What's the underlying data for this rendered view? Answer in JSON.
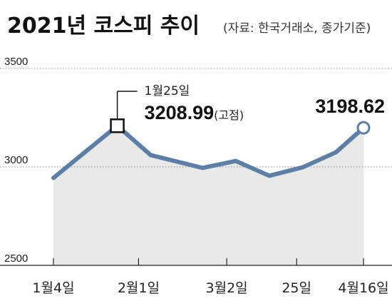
{
  "title": "2021년 코스피 추이",
  "source": "(자료: 한국거래소, 종가기준)",
  "chart_data": {
    "type": "area",
    "title": "2021년 코스피 추이",
    "ylim": [
      2500,
      3500
    ],
    "yticks": [
      "3500",
      "3000",
      "2500"
    ],
    "grid": "dotted horizontal at 3500 and 3000",
    "x_labels": [
      "1월4일",
      "2월1일",
      "3월2일",
      "25일",
      "4월16일"
    ],
    "series": [
      {
        "points": [
          {
            "x": "2021-01-04",
            "y": 2944
          },
          {
            "x": "2021-01-25",
            "y": 3208.99
          },
          {
            "x": "2021-02-05",
            "y": 3060
          },
          {
            "x": "2021-02-22",
            "y": 2995
          },
          {
            "x": "2021-03-05",
            "y": 3030
          },
          {
            "x": "2021-03-16",
            "y": 2955
          },
          {
            "x": "2021-03-27",
            "y": 2998
          },
          {
            "x": "2021-04-07",
            "y": 3075
          },
          {
            "x": "2021-04-16",
            "y": 3198.62
          }
        ],
        "color": "#5b7fa6"
      }
    ],
    "annotations": [
      {
        "label": "1월25일",
        "value": "3208.99",
        "suffix": "(고점)",
        "marker": "square"
      },
      {
        "value": "3198.62",
        "marker": "circle"
      }
    ]
  },
  "colors": {
    "line": "#5b7fa6",
    "area": "#e9e9e9",
    "grid": "#888888"
  }
}
